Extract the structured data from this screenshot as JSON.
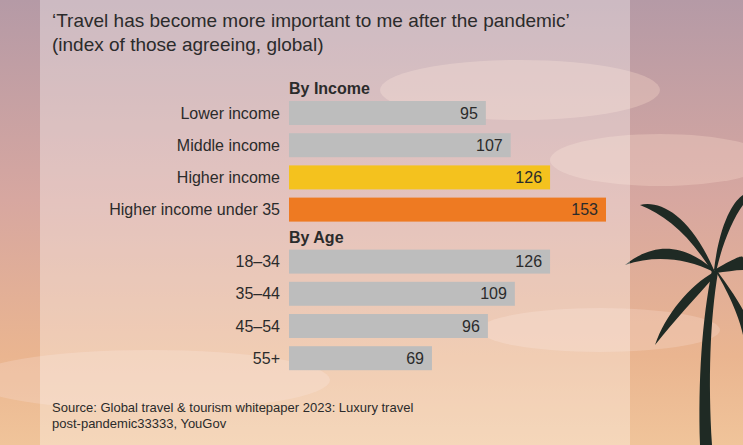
{
  "chart_data": {
    "type": "bar",
    "orientation": "horizontal",
    "title": "‘Travel has become more important to me after the pandemic’ (index of those agreeing, global)",
    "groups": [
      {
        "title": "By Income",
        "categories": [
          "Lower income",
          "Middle income",
          "Higher income",
          "Higher income under 35"
        ],
        "values": [
          95,
          107,
          126,
          153
        ],
        "colors": [
          "#bdbdbd",
          "#bdbdbd",
          "#f4c21e",
          "#ee7a22"
        ]
      },
      {
        "title": "By Age",
        "categories": [
          "18–34",
          "35–44",
          "45–54",
          "55+"
        ],
        "values": [
          126,
          109,
          96,
          69
        ],
        "colors": [
          "#bdbdbd",
          "#bdbdbd",
          "#bdbdbd",
          "#bdbdbd"
        ]
      }
    ],
    "xlim": [
      0,
      153
    ],
    "data_labels": true,
    "tick_labels": false,
    "grid": false,
    "source": "Source: Global travel & tourism whitepaper 2023: Luxury travel post-pandemic33333, YouGov"
  }
}
